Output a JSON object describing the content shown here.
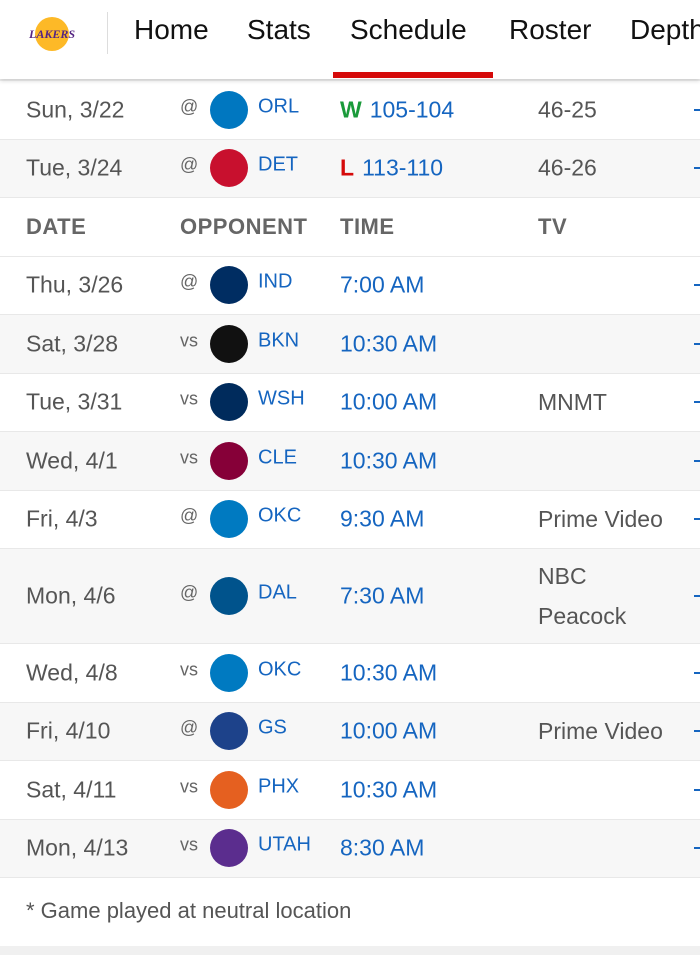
{
  "nav": {
    "tabs": [
      {
        "label": "Home"
      },
      {
        "label": "Stats"
      },
      {
        "label": "Schedule",
        "active": true
      },
      {
        "label": "Roster"
      },
      {
        "label": "Depth"
      }
    ],
    "logo_text": "LAKERS",
    "accent": "#d50a0a"
  },
  "completed": [
    {
      "date": "Sun, 3/22",
      "loc": "@",
      "team": "ORL",
      "result": "W",
      "score": "105-104",
      "record": "46-25",
      "color": "#0077c0",
      "result_color": "#1a9a3a"
    },
    {
      "date": "Tue, 3/24",
      "loc": "@",
      "team": "DET",
      "result": "L",
      "score": "113-110",
      "record": "46-26",
      "color": "#c8102e",
      "result_color": "#d50a0a"
    }
  ],
  "headers": {
    "date": "DATE",
    "opponent": "OPPONENT",
    "time": "TIME",
    "tv": "TV"
  },
  "upcoming": [
    {
      "date": "Thu, 3/26",
      "loc": "@",
      "team": "IND",
      "time": "7:00 AM",
      "tv": "",
      "color": "#002d62"
    },
    {
      "date": "Sat, 3/28",
      "loc": "vs",
      "team": "BKN",
      "time": "10:30 AM",
      "tv": "",
      "color": "#111111"
    },
    {
      "date": "Tue, 3/31",
      "loc": "vs",
      "team": "WSH",
      "time": "10:00 AM",
      "tv": "MNMT",
      "color": "#002b5c"
    },
    {
      "date": "Wed, 4/1",
      "loc": "vs",
      "team": "CLE",
      "time": "10:30 AM",
      "tv": "",
      "color": "#860038"
    },
    {
      "date": "Fri, 4/3",
      "loc": "@",
      "team": "OKC",
      "time": "9:30 AM",
      "tv": "Prime Video",
      "color": "#007ac1"
    },
    {
      "date": "Mon, 4/6",
      "loc": "@",
      "team": "DAL",
      "time": "7:30 AM",
      "tv": "NBC Peacock",
      "color": "#00538c"
    },
    {
      "date": "Wed, 4/8",
      "loc": "vs",
      "team": "OKC",
      "time": "10:30 AM",
      "tv": "",
      "color": "#007ac1"
    },
    {
      "date": "Fri, 4/10",
      "loc": "@",
      "team": "GS",
      "time": "10:00 AM",
      "tv": "Prime Video",
      "color": "#1d428a"
    },
    {
      "date": "Sat, 4/11",
      "loc": "vs",
      "team": "PHX",
      "time": "10:30 AM",
      "tv": "",
      "color": "#e56020"
    },
    {
      "date": "Mon, 4/13",
      "loc": "vs",
      "team": "UTAH",
      "time": "8:30 AM",
      "tv": "",
      "color": "#5b2d8e"
    }
  ],
  "footnote": "* Game played at neutral location"
}
